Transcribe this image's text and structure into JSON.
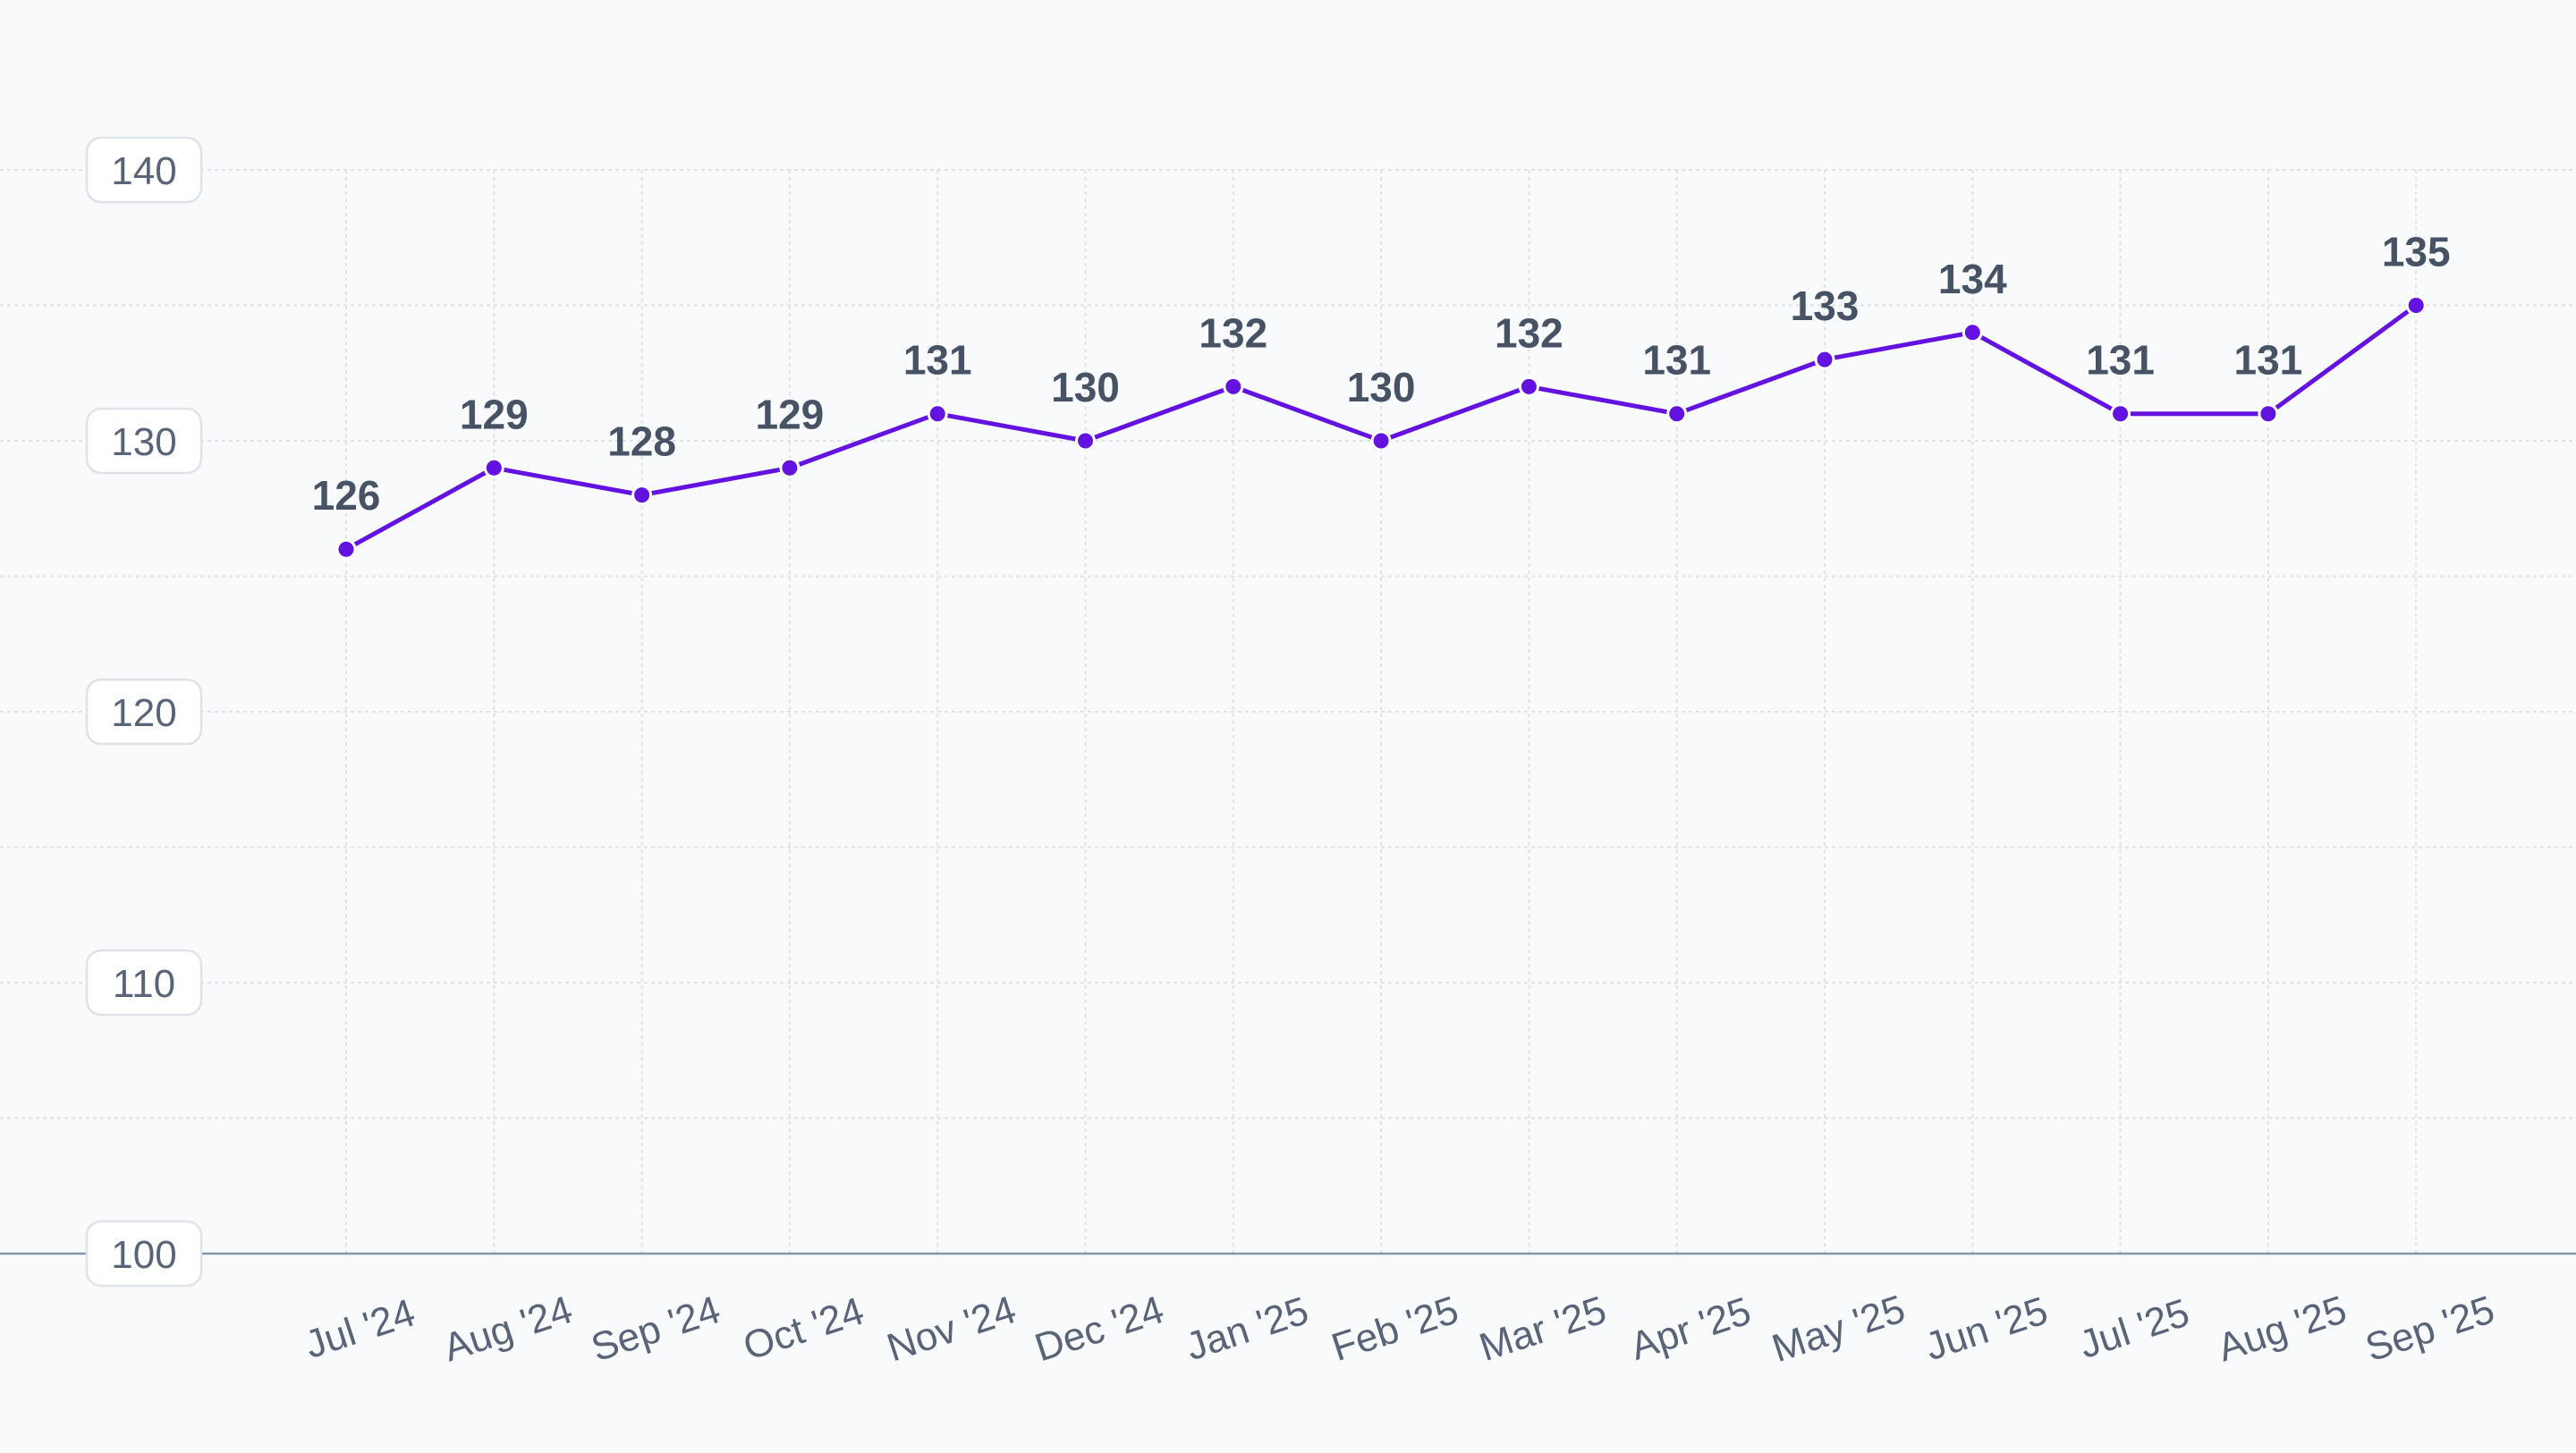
{
  "chart_data": {
    "type": "line",
    "title": "",
    "xlabel": "",
    "ylabel": "",
    "categories": [
      "Jul '24",
      "Aug '24",
      "Sep '24",
      "Oct '24",
      "Nov '24",
      "Dec '24",
      "Jan '25",
      "Feb '25",
      "Mar '25",
      "Apr '25",
      "May '25",
      "Jun '25",
      "Jul '25",
      "Aug '25",
      "Sep '25"
    ],
    "series": [
      {
        "values": [
          126,
          129,
          128,
          129,
          131,
          130,
          132,
          130,
          132,
          131,
          133,
          134,
          131,
          131,
          135
        ],
        "color": "#6312e0"
      }
    ],
    "ylim": [
      100,
      140
    ],
    "yticks": [
      100,
      110,
      120,
      130,
      140
    ],
    "ytick_labels": [
      "100",
      "110",
      "120",
      "130",
      "140"
    ],
    "minor_gridlines": [
      105,
      115,
      125,
      135
    ],
    "grid": true,
    "data_labels": true,
    "legend": "none",
    "colors": {
      "background": "#f8fafc",
      "line": "#6312e0",
      "grid": "#dfe3e8",
      "baseline": "#8496ab",
      "data_label": "#475265",
      "tick_label": "#5a6478",
      "ytick_pill_border": "#dfe3e8",
      "ytick_pill_fill": "#ffffff"
    }
  }
}
